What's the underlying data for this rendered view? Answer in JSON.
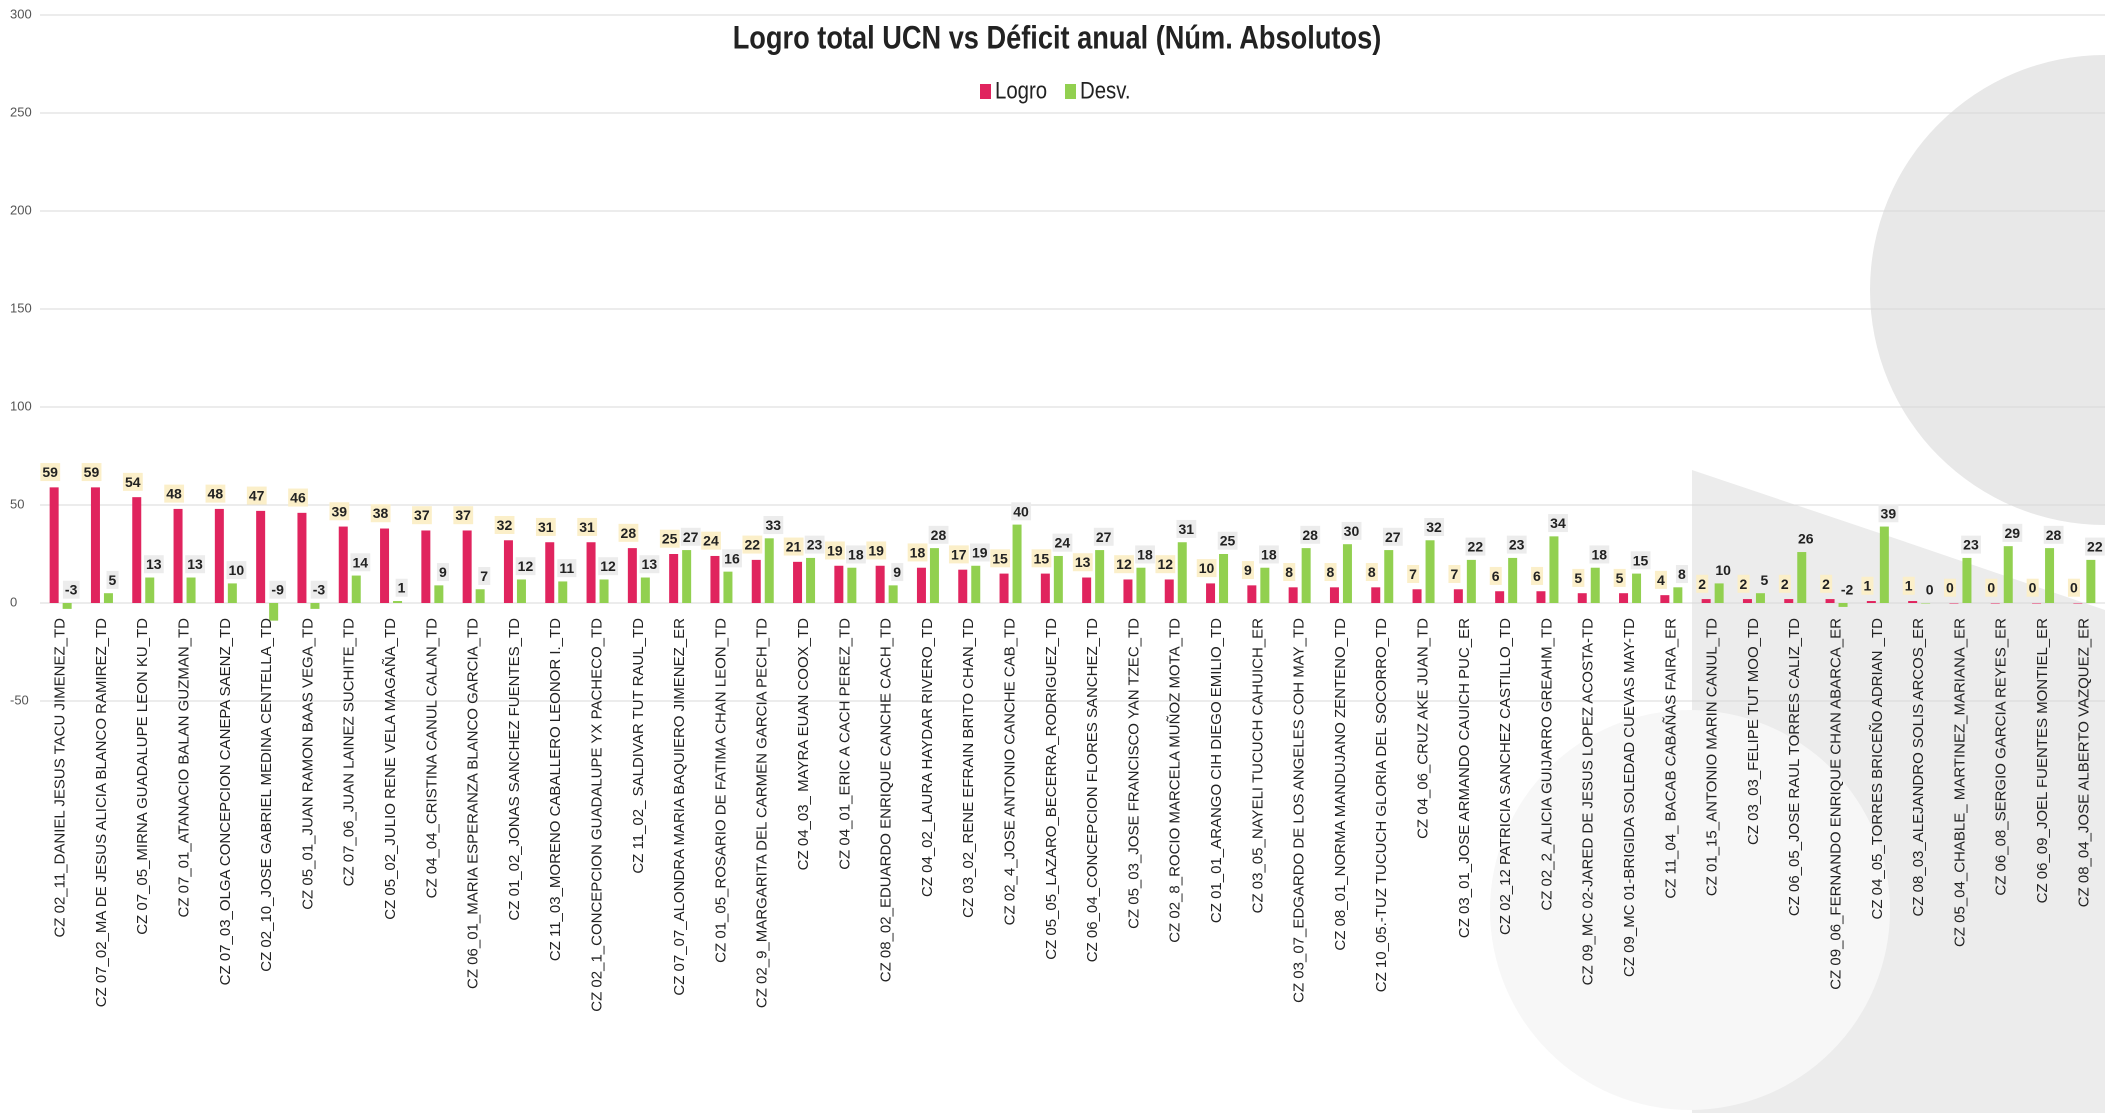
{
  "chart_data": {
    "type": "bar",
    "title": "Logro total UCN vs Déficit anual (Núm. Absolutos)",
    "ylim": [
      -50,
      300
    ],
    "yticks": [
      -50,
      0,
      50,
      100,
      150,
      200,
      250,
      300
    ],
    "grid": true,
    "legend": "top",
    "categories": [
      "CZ 02_11_DANIEL JESUS TACU JIMENEZ_TD",
      "CZ 07_02_MA DE JESUS ALICIA BLANCO RAMIREZ_TD",
      "CZ 07_05_MIRNA GUADALUPE LEON KU_TD",
      "CZ 07_01_ATANACIO BALAN GUZMAN_TD",
      "CZ 07_03_OLGA CONCEPCION CANEPA SAENZ_TD",
      "CZ 02_10_JOSE GABRIEL MEDINA CENTELLA_TD",
      "CZ 05_01_JUAN RAMON BAAS VEGA_TD",
      "CZ 07_06_JUAN LAINEZ SUCHITE_TD",
      "CZ 05_02_JULIO RENE VELA MAGAÑA_TD",
      "CZ 04_04_CRISTINA CANUL CALAN_TD",
      "CZ 06_01_MARIA ESPERANZA BLANCO GARCIA_TD",
      "CZ 01_02_JONAS SANCHEZ FUENTES_TD",
      "CZ 11_03_MORENO CABALLERO LEONOR I._TD",
      "CZ 02_1_CONCEPCION GUADALUPE YX PACHECO_TD",
      "CZ 11_02_ SALDIVAR TUT RAUL_TD",
      "CZ 07_07_ALONDRA MARIA BAQUIERO JIMENEZ_ER",
      "CZ 01_05_ROSARIO DE FATIMA CHAN LEON_TD",
      "CZ 02_9_MARGARITA DEL CARMEN GARCIA PECH_TD",
      "CZ 04_03_ MAYRA EUAN COOX_TD",
      "CZ 04_01_ERIC A CACH PEREZ_TD",
      "CZ 08_02_EDUARDO ENRIQUE CANCHE CACH_TD",
      "CZ 04_02_LAURA HAYDAR RIVERO_TD",
      "CZ 03_02_RENE EFRAIN BRITO CHAN_TD",
      "CZ 02_4_JOSE ANTONIO CANCHE CAB_TD",
      "CZ 05_05_LAZARO_BECERRA_RODRIGUEZ_TD",
      "CZ 06_04_CONCEPCION FLORES SANCHEZ_TD",
      "CZ 05_03_JOSE FRANCISCO YAN TZEC_TD",
      "CZ 02_8_ROCIO MARCELA MUÑOZ MOTA_TD",
      "CZ 01_01_ARANGO CIH DIEGO EMILIO_TD",
      "CZ 03_05_NAYELI TUCUCH CAHUICH_ER",
      "CZ 03_07_EDGARDO DE LOS ANGELES COH MAY_TD",
      "CZ 08_01_NORMA MANDUJANO ZENTENO_TD",
      "CZ 10_05.-TUZ TUCUCH GLORIA DEL SOCORRO_TD",
      "CZ 04_06_CRUZ AKE JUAN_TD",
      "CZ 03_01_JOSE ARMANDO CAUICH PUC_ER",
      "CZ 02_12 PATRICIA SANCHEZ CASTILLO_TD",
      "CZ 02_2_ALICIA GUIJARRO GREAHM_TD",
      "CZ 09_MC 02-JARED DE JESUS LOPEZ ACOSTA-TD",
      "CZ 09_MC 01-BRIGIDA SOLEDAD CUEVAS MAY-TD",
      "CZ 11_04_ BACAB CABAÑAS FAIRA_ER",
      "CZ 01_15_ANTONIO MARIN CANUL_TD",
      "CZ 03_03_FELIPE TUT MOO_TD",
      "CZ 06_05_JOSE RAUL TORRES CALIZ_TD",
      "CZ 09_06_FERNANDO ENRIQUE CHAN ABARCA_ER",
      "CZ 04_05_TORRES BRICEÑO ADRIAN _TD",
      "CZ 08_03_ALEJANDRO SOLIS ARCOS_ER",
      "CZ 05_04_CHABLE_ MARTINEZ_MARIANA_ER",
      "CZ 06_08_SERGIO GARCIA REYES_ER",
      "CZ 06_09_JOEL FUENTES MONTIEL_ER",
      "CZ 08_04_JOSE ALBERTO VAZQUEZ_ER"
    ],
    "series": [
      {
        "name": "Logro",
        "color": "#e0245e",
        "values": [
          59,
          59,
          54,
          48,
          48,
          47,
          46,
          39,
          38,
          37,
          37,
          32,
          31,
          31,
          28,
          25,
          24,
          22,
          21,
          19,
          19,
          18,
          17,
          15,
          15,
          13,
          12,
          12,
          10,
          9,
          8,
          8,
          8,
          7,
          7,
          6,
          6,
          5,
          5,
          4,
          2,
          2,
          2,
          2,
          1,
          1,
          0,
          0,
          0,
          0
        ]
      },
      {
        "name": "Desv.",
        "color": "#92d050",
        "values": [
          -3,
          5,
          13,
          13,
          10,
          -9,
          -3,
          14,
          1,
          9,
          7,
          12,
          11,
          12,
          13,
          27,
          16,
          33,
          23,
          18,
          9,
          28,
          19,
          40,
          24,
          27,
          18,
          31,
          25,
          18,
          28,
          30,
          27,
          32,
          22,
          23,
          34,
          18,
          15,
          8,
          10,
          5,
          26,
          -2,
          39,
          0,
          23,
          29,
          28,
          22
        ]
      }
    ]
  }
}
